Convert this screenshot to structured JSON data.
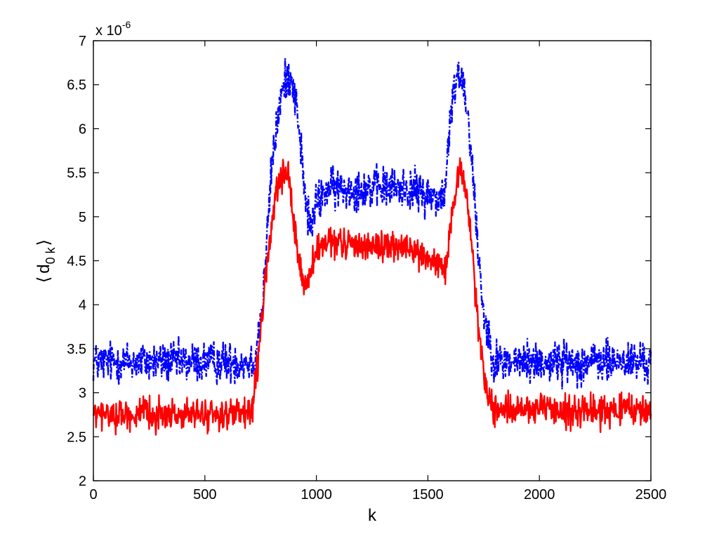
{
  "chart_data": {
    "type": "line",
    "title": "",
    "xlabel": "k",
    "ylabel": "⟨ d0 k⟩",
    "ylabel_parts": {
      "left": "⟨",
      "base": "d",
      "sub": "0 k",
      "right": "⟩"
    },
    "y_exponent": {
      "base": "x 10",
      "exp": "-6"
    },
    "xlim": [
      0,
      2500
    ],
    "ylim": [
      2,
      7
    ],
    "xticks": [
      "0",
      "500",
      "1000",
      "1500",
      "2000",
      "2500"
    ],
    "yticks": [
      "2",
      "2.5",
      "3",
      "3.5",
      "4",
      "4.5",
      "5",
      "5.5",
      "6",
      "6.5",
      "7"
    ],
    "grid": false,
    "legend": false,
    "sampling": {
      "x_start": 0,
      "x_end": 2500,
      "step": 2
    },
    "series": [
      {
        "color": "#0000ff",
        "line_style": "dash-dot",
        "noise_amplitude": 0.18,
        "profile_x": [
          0,
          720,
          760,
          800,
          840,
          870,
          890,
          920,
          950,
          975,
          1000,
          1050,
          1400,
          1560,
          1580,
          1600,
          1630,
          1660,
          1690,
          1720,
          1750,
          1800,
          2500
        ],
        "profile_y": [
          3.35,
          3.35,
          4.0,
          5.6,
          6.35,
          6.62,
          6.6,
          6.1,
          5.2,
          4.85,
          5.15,
          5.32,
          5.33,
          5.2,
          5.35,
          6.1,
          6.65,
          6.55,
          5.9,
          4.8,
          3.9,
          3.35,
          3.35
        ]
      },
      {
        "color": "#ff0000",
        "line_style": "solid",
        "noise_amplitude": 0.13,
        "profile_x": [
          0,
          710,
          740,
          780,
          820,
          860,
          880,
          910,
          940,
          960,
          1000,
          1050,
          1400,
          1560,
          1580,
          1600,
          1640,
          1660,
          1690,
          1720,
          1760,
          1800,
          2500
        ],
        "profile_y": [
          2.75,
          2.75,
          3.4,
          4.5,
          5.3,
          5.5,
          5.35,
          4.7,
          4.25,
          4.25,
          4.6,
          4.7,
          4.65,
          4.45,
          4.35,
          4.8,
          5.55,
          5.45,
          4.9,
          3.9,
          3.05,
          2.8,
          2.8
        ]
      }
    ]
  }
}
